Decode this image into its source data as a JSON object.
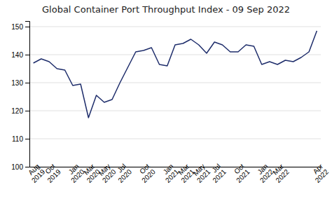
{
  "chart_data": {
    "type": "line",
    "title": "Global Container Port Throughput Index - 09 Sep 2022",
    "categories": [
      "Aug\n2019",
      null,
      "Oct\n2019",
      null,
      null,
      "Jan\n2020",
      null,
      "Mar\n2020",
      null,
      "May\n2020",
      null,
      "Jul\n2020",
      null,
      null,
      "Oct\n2020",
      null,
      null,
      "Jan\n2021",
      null,
      "Mar\n2021",
      null,
      "May\n2021",
      null,
      "Jul\n2021",
      null,
      null,
      "Oct\n2021",
      null,
      null,
      "Jan\n2022",
      null,
      "Mar\n2022",
      null,
      null,
      null,
      null,
      "Apr\n2022"
    ],
    "values": [
      137.0,
      138.5,
      137.5,
      135.0,
      134.5,
      129.0,
      129.5,
      117.5,
      125.5,
      123.0,
      124.0,
      130.0,
      135.5,
      141.0,
      141.5,
      142.5,
      136.5,
      136.0,
      143.5,
      144.0,
      145.5,
      143.5,
      140.5,
      144.5,
      143.5,
      141.0,
      141.0,
      143.5,
      143.0,
      136.5,
      137.5,
      136.5,
      138.0,
      137.5,
      139.0,
      141.0,
      148.5
    ],
    "color": "#1e2d6b",
    "ylim": [
      100,
      152
    ],
    "yticks": [
      100,
      110,
      120,
      130,
      140,
      150
    ],
    "grid": true
  }
}
